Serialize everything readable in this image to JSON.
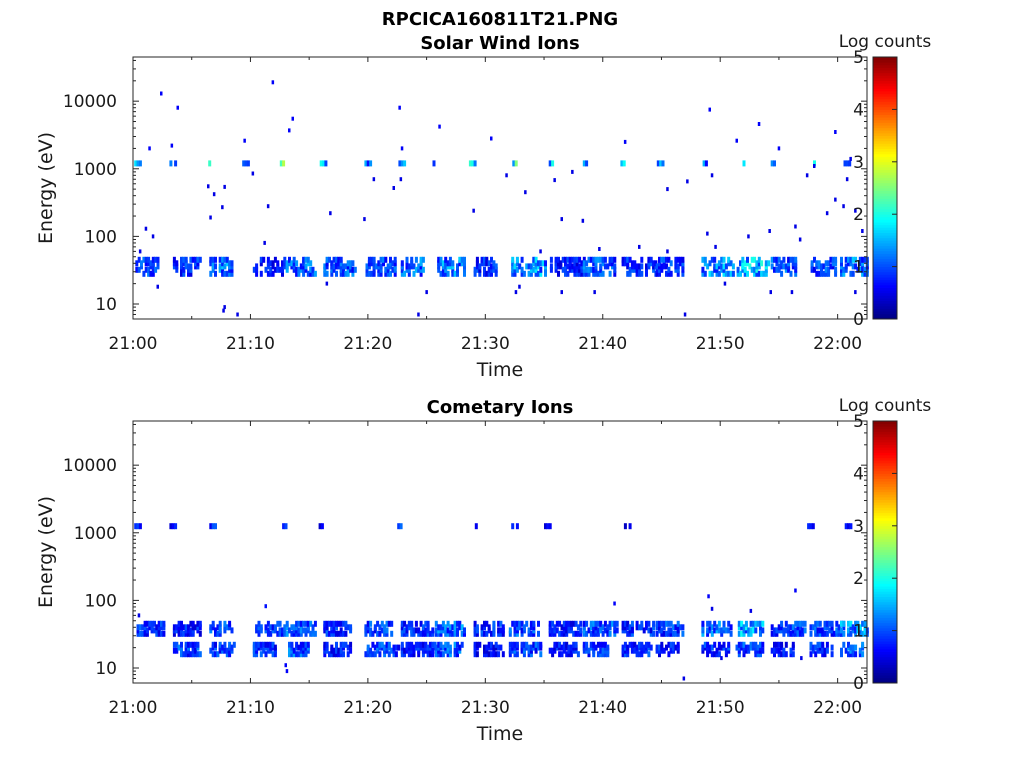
{
  "figure_title": "RPCICA160811T21.PNG",
  "colors": {
    "colormap": [
      "#00007f",
      "#0000ff",
      "#007fff",
      "#00ffff",
      "#7fff7f",
      "#ffff00",
      "#ff7f00",
      "#ff0000",
      "#7f0000"
    ],
    "axis": "#262626",
    "background": "#ffffff"
  },
  "chart_data": [
    {
      "type": "heatmap",
      "title": "Solar Wind Ions",
      "xlabel": "Time",
      "ylabel": "Energy (eV)",
      "y_scale": "log",
      "ylim": [
        6,
        45000
      ],
      "xlim_minutes": [
        0,
        62.5
      ],
      "x_ticks": [
        "21:00",
        "21:10",
        "21:20",
        "21:30",
        "21:40",
        "21:50",
        "22:00"
      ],
      "y_ticks": [
        "10",
        "100",
        "1000",
        "10000"
      ],
      "colorbar": {
        "label": "Log counts",
        "ticks": [
          "0",
          "1",
          "2",
          "3",
          "4",
          "5"
        ],
        "range": [
          0,
          5
        ]
      },
      "bands": [
        {
          "name": "low",
          "energies": [
            28,
            32,
            36,
            40,
            45
          ],
          "times": [
            0.2,
            3.4,
            6.5,
            10.2,
            13.0,
            16.2,
            19.8,
            22.8,
            25.9,
            29.0,
            32.2,
            35.5,
            38.3,
            41.6,
            44.5,
            48.4,
            51.4,
            54.3,
            57.7,
            60.2
          ],
          "levels": [
            1.0,
            0.9,
            1.3,
            0.8,
            1.2,
            1.1,
            1.0,
            1.2,
            1.3,
            0.9,
            1.4,
            0.8,
            1.1,
            0.9,
            1.0,
            1.4,
            1.6,
            1.1,
            1.0,
            1.3
          ]
        },
        {
          "name": "high",
          "energies": [
            1200
          ],
          "times": [
            0.1,
            3.1,
            6.4,
            9.3,
            12.5,
            15.9,
            19.7,
            22.6,
            25.3,
            28.6,
            32.3,
            35.2,
            38.3,
            41.5,
            44.6,
            48.3,
            51.5,
            54.3,
            57.5,
            60.5
          ],
          "levels": [
            1.4,
            1.6,
            1.7,
            1.6,
            2.2,
            1.6,
            1.3,
            1.7,
            1.4,
            1.8,
            2.6,
            1.9,
            1.5,
            1.6,
            1.4,
            1.2,
            1.7,
            1.8,
            2.0,
            1.5
          ]
        }
      ],
      "points": [
        [
          2.3,
          13000,
          0.6
        ],
        [
          3.7,
          8000,
          0.6
        ],
        [
          11.8,
          19000,
          0.6
        ],
        [
          22.6,
          8000,
          0.6
        ],
        [
          30.4,
          2800,
          0.6
        ],
        [
          49.0,
          7500,
          0.6
        ],
        [
          53.2,
          4600,
          0.6
        ],
        [
          59.7,
          3500,
          0.6
        ],
        [
          1.3,
          2000,
          0.6
        ],
        [
          3.2,
          2200,
          0.6
        ],
        [
          9.4,
          2600,
          0.6
        ],
        [
          13.5,
          5500,
          0.6
        ],
        [
          13.2,
          3700,
          0.6
        ],
        [
          22.8,
          2000,
          0.6
        ],
        [
          26.0,
          4200,
          0.6
        ],
        [
          41.8,
          2500,
          0.6
        ],
        [
          51.3,
          2600,
          0.6
        ],
        [
          54.9,
          2000,
          0.6
        ],
        [
          0.5,
          60,
          0.5
        ],
        [
          1.0,
          130,
          0.5
        ],
        [
          1.6,
          100,
          0.5
        ],
        [
          6.3,
          550,
          0.5
        ],
        [
          6.8,
          420,
          0.5
        ],
        [
          7.7,
          540,
          0.5
        ],
        [
          7.5,
          270,
          0.5
        ],
        [
          6.5,
          190,
          0.5
        ],
        [
          10.1,
          850,
          0.5
        ],
        [
          11.4,
          280,
          0.5
        ],
        [
          11.1,
          80,
          0.5
        ],
        [
          16.7,
          220,
          0.5
        ],
        [
          19.6,
          180,
          0.5
        ],
        [
          20.4,
          700,
          0.5
        ],
        [
          22.1,
          520,
          0.5
        ],
        [
          22.7,
          700,
          0.5
        ],
        [
          28.9,
          240,
          0.5
        ],
        [
          31.7,
          800,
          0.5
        ],
        [
          33.3,
          450,
          0.5
        ],
        [
          34.6,
          60,
          0.5
        ],
        [
          35.8,
          680,
          0.5
        ],
        [
          36.4,
          180,
          0.5
        ],
        [
          37.3,
          900,
          0.5
        ],
        [
          38.2,
          170,
          0.5
        ],
        [
          39.6,
          65,
          0.5
        ],
        [
          43.0,
          70,
          0.5
        ],
        [
          45.4,
          60,
          0.5
        ],
        [
          45.4,
          500,
          0.5
        ],
        [
          47.1,
          650,
          0.5
        ],
        [
          48.8,
          110,
          0.5
        ],
        [
          49.2,
          800,
          0.5
        ],
        [
          49.5,
          70,
          0.5
        ],
        [
          52.3,
          100,
          0.5
        ],
        [
          54.1,
          120,
          0.5
        ],
        [
          56.3,
          140,
          0.5
        ],
        [
          56.7,
          90,
          0.5
        ],
        [
          57.3,
          800,
          0.5
        ],
        [
          57.9,
          1100,
          0.5
        ],
        [
          59.0,
          220,
          0.5
        ],
        [
          59.7,
          350,
          0.5
        ],
        [
          60.4,
          280,
          0.5
        ],
        [
          60.7,
          700,
          0.5
        ],
        [
          61.0,
          1400,
          0.5
        ],
        [
          61.4,
          240,
          0.5
        ],
        [
          62.0,
          120,
          0.5
        ],
        [
          2.0,
          18,
          0.5
        ],
        [
          16.4,
          20,
          0.5
        ],
        [
          24.9,
          15,
          0.5
        ],
        [
          32.8,
          18,
          0.5
        ],
        [
          32.5,
          15,
          0.5
        ],
        [
          36.4,
          15,
          0.5
        ],
        [
          39.2,
          15,
          0.5
        ],
        [
          50.3,
          20,
          0.5
        ],
        [
          54.2,
          15,
          0.5
        ],
        [
          56.0,
          15,
          0.5
        ],
        [
          61.4,
          15,
          0.5
        ],
        [
          7.7,
          9,
          0.5
        ],
        [
          7.6,
          8,
          0.5
        ],
        [
          8.8,
          7,
          0.5
        ],
        [
          24.2,
          7,
          0.5
        ],
        [
          46.9,
          7,
          0.5
        ]
      ]
    },
    {
      "type": "heatmap",
      "title": "Cometary Ions",
      "xlabel": "Time",
      "ylabel": "Energy (eV)",
      "y_scale": "log",
      "ylim": [
        6,
        45000
      ],
      "xlim_minutes": [
        0,
        62.5
      ],
      "x_ticks": [
        "21:00",
        "21:10",
        "21:20",
        "21:30",
        "21:40",
        "21:50",
        "22:00"
      ],
      "y_ticks": [
        "10",
        "100",
        "1000",
        "10000"
      ],
      "colorbar": {
        "label": "Log counts",
        "ticks": [
          "0",
          "1",
          "2",
          "3",
          "4",
          "5"
        ],
        "range": [
          0,
          5
        ]
      },
      "bands": [
        {
          "name": "upper",
          "energies": [
            32,
            36,
            40,
            45
          ],
          "times": [
            0.3,
            3.4,
            6.5,
            10.2,
            13.0,
            16.2,
            19.7,
            22.8,
            25.7,
            29.0,
            32.0,
            35.4,
            38.3,
            41.6,
            44.5,
            48.4,
            51.3,
            54.3,
            57.6,
            60.2
          ],
          "levels": [
            0.9,
            0.8,
            1.0,
            0.9,
            1.2,
            0.9,
            1.0,
            0.9,
            1.2,
            0.9,
            1.1,
            0.8,
            1.1,
            0.9,
            1.0,
            1.2,
            1.5,
            1.0,
            1.0,
            1.4
          ]
        },
        {
          "name": "lower",
          "energies": [
            16,
            18,
            20,
            22
          ],
          "times": [
            3.4,
            6.5,
            10.2,
            13.0,
            16.2,
            19.7,
            22.8,
            25.7,
            29.0,
            32.0,
            35.4,
            38.3,
            41.6,
            44.5,
            48.4,
            51.3,
            54.3,
            57.6,
            60.2
          ],
          "levels": [
            1.0,
            0.9,
            0.9,
            1.1,
            0.8,
            1.0,
            0.8,
            1.1,
            0.7,
            1.0,
            0.8,
            1.0,
            0.9,
            0.8,
            0.9,
            1.0,
            0.8,
            0.9,
            1.1
          ]
        },
        {
          "name": "high",
          "energies": [
            1250
          ],
          "times": [
            0.1,
            3.1,
            6.5,
            12.5,
            15.8,
            22.5,
            28.7,
            32.2,
            35.0,
            41.8,
            57.4,
            60.6
          ],
          "levels": [
            0.8,
            0.7,
            0.9,
            0.9,
            0.6,
            0.9,
            0.9,
            0.7,
            0.6,
            0.6,
            0.7,
            0.6
          ]
        }
      ],
      "points": [
        [
          11.2,
          82,
          0.7
        ],
        [
          12.9,
          11,
          0.6
        ],
        [
          13.0,
          9,
          0.6
        ],
        [
          40.9,
          90,
          0.6
        ],
        [
          48.9,
          115,
          0.6
        ],
        [
          49.2,
          75,
          0.5
        ],
        [
          52.5,
          70,
          0.5
        ],
        [
          56.3,
          140,
          0.6
        ],
        [
          46.8,
          7,
          0.5
        ],
        [
          50.0,
          14,
          0.5
        ],
        [
          56.8,
          14,
          0.5
        ],
        [
          0.4,
          60,
          0.5
        ]
      ]
    }
  ]
}
